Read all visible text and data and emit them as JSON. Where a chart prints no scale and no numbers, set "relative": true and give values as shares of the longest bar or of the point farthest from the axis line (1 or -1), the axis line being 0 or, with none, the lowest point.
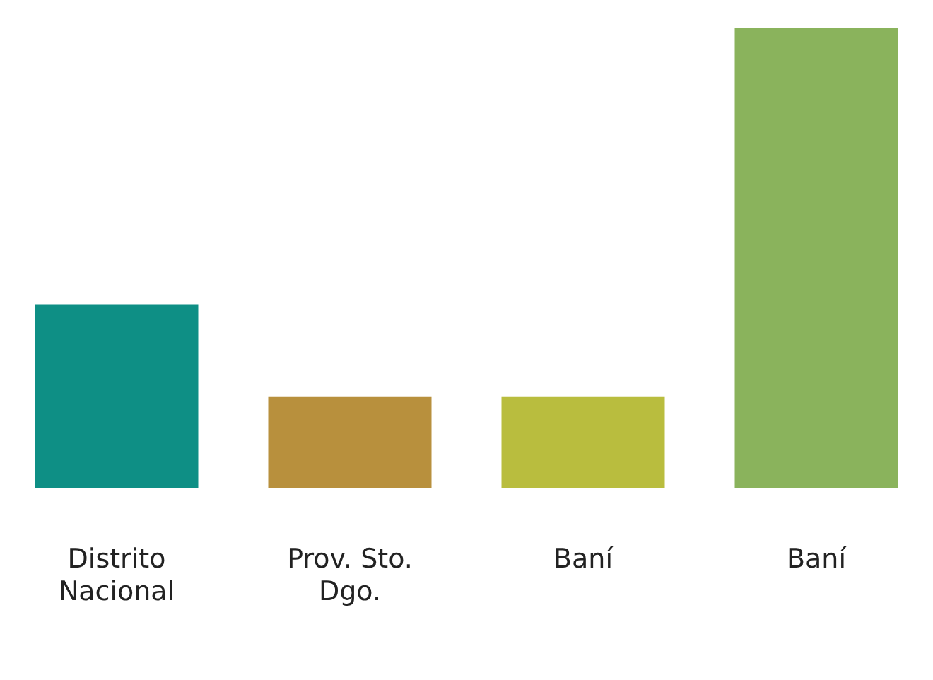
{
  "chart_data": {
    "type": "bar",
    "relative": true,
    "categories": [
      "Distrito Nacional",
      "Prov. Sto. Dgo.",
      "Baní",
      "Baní"
    ],
    "values": [
      0.4,
      0.2,
      0.2,
      1
    ],
    "colors": [
      "#0e8f85",
      "#b8903d",
      "#b9bd3e",
      "#8ab35c"
    ],
    "grid": false,
    "legend": false
  }
}
